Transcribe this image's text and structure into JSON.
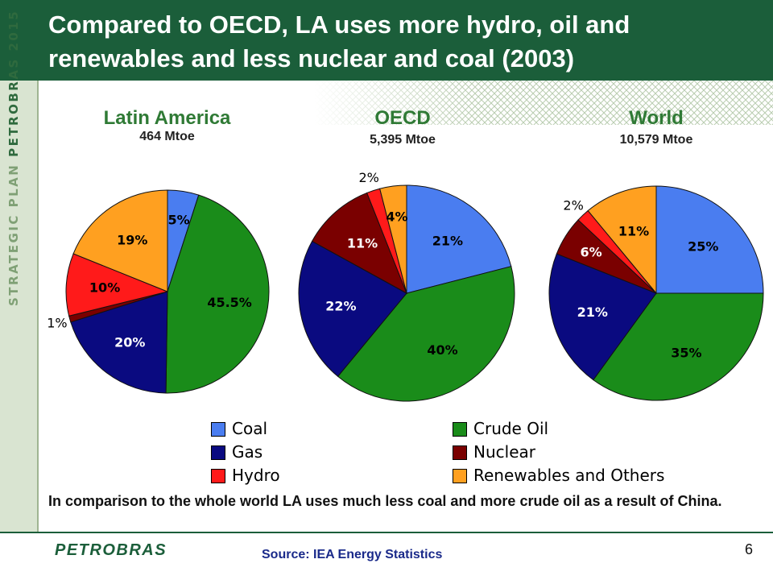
{
  "header": {
    "title": "Compared to OECD, LA uses more hydro, oil and renewables and less nuclear and coal (2003)"
  },
  "side_band": {
    "prefix": "STRATEGIC PLAN ",
    "brand": "PETROBRAS 2015"
  },
  "colors": {
    "header_bg": "#1b5e3a",
    "Coal": "#4a7df0",
    "Crude Oil": "#1a8c1a",
    "Gas": "#0a0a80",
    "Nuclear": "#7a0000",
    "Hydro": "#ff1a1a",
    "Renewables and Others": "#ffa020"
  },
  "chart_data": [
    {
      "type": "pie",
      "title": "Latin America",
      "subtitle": "464 Mtoe",
      "slices": [
        {
          "label": "Coal",
          "value": 5,
          "text": "5%"
        },
        {
          "label": "Crude Oil",
          "value": 45.5,
          "text": "45.5%"
        },
        {
          "label": "Gas",
          "value": 20,
          "text": "20%"
        },
        {
          "label": "Nuclear",
          "value": 1,
          "text": "1%"
        },
        {
          "label": "Hydro",
          "value": 10,
          "text": "10%"
        },
        {
          "label": "Renewables and Others",
          "value": 19,
          "text": "19%"
        }
      ]
    },
    {
      "type": "pie",
      "title": "OECD",
      "subtitle": "5,395 Mtoe",
      "slices": [
        {
          "label": "Coal",
          "value": 21,
          "text": "21%"
        },
        {
          "label": "Crude Oil",
          "value": 40,
          "text": "40%"
        },
        {
          "label": "Gas",
          "value": 22,
          "text": "22%"
        },
        {
          "label": "Nuclear",
          "value": 11,
          "text": "11%"
        },
        {
          "label": "Hydro",
          "value": 2,
          "text": "2%"
        },
        {
          "label": "Renewables and Others",
          "value": 4,
          "text": "4%"
        }
      ]
    },
    {
      "type": "pie",
      "title": "World",
      "subtitle": "10,579 Mtoe",
      "slices": [
        {
          "label": "Coal",
          "value": 25,
          "text": "25%"
        },
        {
          "label": "Crude Oil",
          "value": 35,
          "text": "35%"
        },
        {
          "label": "Gas",
          "value": 21,
          "text": "21%"
        },
        {
          "label": "Nuclear",
          "value": 6,
          "text": "6%"
        },
        {
          "label": "Hydro",
          "value": 2,
          "text": "2%"
        },
        {
          "label": "Renewables and Others",
          "value": 11,
          "text": "11%"
        }
      ]
    }
  ],
  "legend": [
    "Coal",
    "Crude Oil",
    "Gas",
    "Nuclear",
    "Hydro",
    "Renewables and Others"
  ],
  "note": "In comparison to the whole world LA uses much less coal and more crude oil as a result of China.",
  "footer": {
    "logo": "PETROBRAS",
    "source": "Source: IEA Energy Statistics",
    "page": "6"
  }
}
